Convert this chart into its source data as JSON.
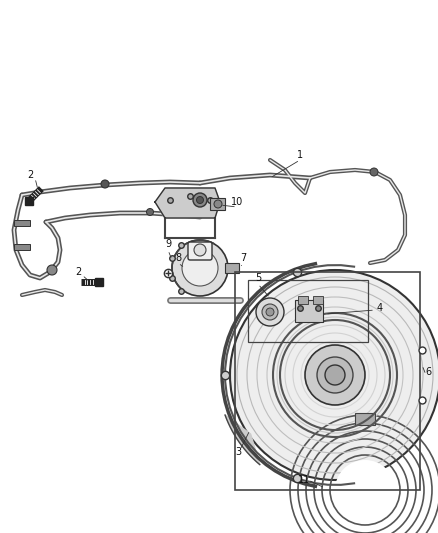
{
  "bg_color": "#ffffff",
  "fig_width": 4.38,
  "fig_height": 5.33,
  "dpi": 100,
  "line_color": "#404040",
  "pipe_color": "#555555",
  "part_color": "#606060",
  "label_fontsize": 7.0
}
